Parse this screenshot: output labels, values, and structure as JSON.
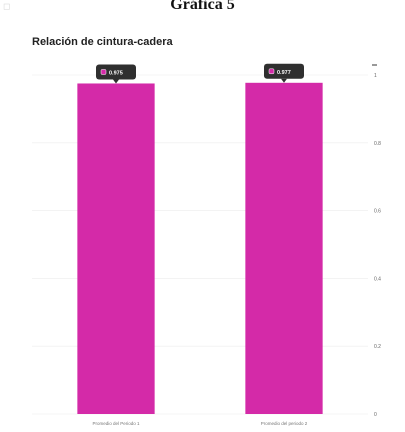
{
  "header": {
    "title": "Gráfica 5"
  },
  "chart_data": {
    "type": "bar",
    "title": "Relación de cintura-cadera",
    "categories": [
      "Promedio del Periodo 1",
      "Promedio del periodo 2"
    ],
    "values": [
      0.975,
      0.977
    ],
    "value_labels": [
      "0.975",
      "0.977"
    ],
    "ylim": [
      0,
      1
    ],
    "yticks": [
      0,
      0.2,
      0.4,
      0.6,
      0.8,
      1
    ],
    "ytick_labels": [
      "0",
      "0.2",
      "0.4",
      "0.6",
      "0.8",
      "1"
    ],
    "grid": true,
    "legend": "none",
    "xlabel": "",
    "ylabel": "",
    "bar_color": "#d42aa8",
    "tooltip_color": "#2f2f2f"
  }
}
